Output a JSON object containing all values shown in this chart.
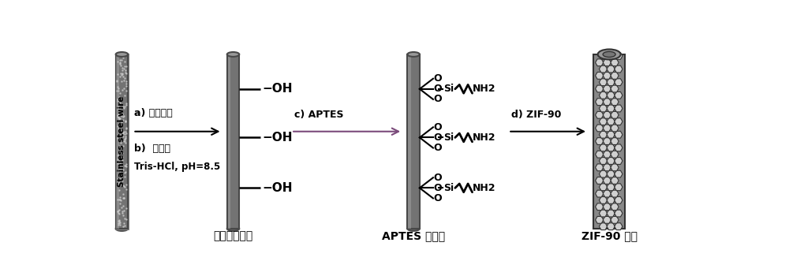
{
  "fig_width": 10.0,
  "fig_height": 3.5,
  "dpi": 100,
  "bg_color": "#ffffff",
  "step1_label": "聚多巴胺修饰",
  "step2_label": "APTES 功能化",
  "step3_label": "ZIF-90 涂层",
  "side_label": "Stainless steel wire",
  "arrow1_text_a": "a) 王水腐蚀",
  "arrow1_text_b": "b)  多巴胺",
  "arrow1_text_c": "Tris-HCl, pH=8.5",
  "arrow2_text": "c) APTES",
  "arrow3_text": "d) ZIF-90",
  "wire_gray": "#737373",
  "wire_light": "#b0b0b0",
  "wire_dark": "#484848",
  "cap_gray": "#999999",
  "hex_fill": "#d0d0d0",
  "hex_edge": "#333333"
}
